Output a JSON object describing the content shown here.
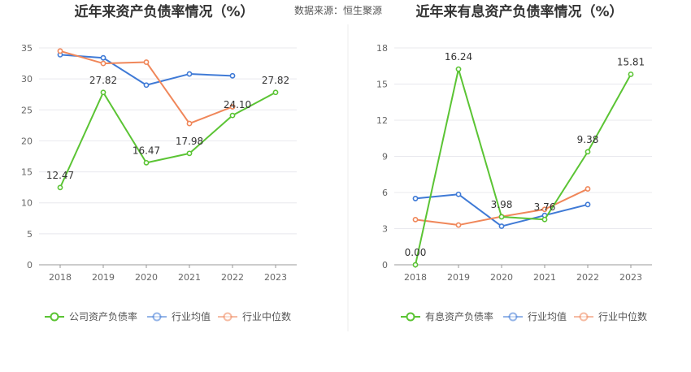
{
  "source": "数据来源：恒生聚源",
  "chart_data": [
    {
      "type": "line",
      "title": "近年来资产负债率情况（%）",
      "categories": [
        "2018",
        "2019",
        "2020",
        "2021",
        "2022",
        "2023"
      ],
      "ylim": [
        0,
        35
      ],
      "yticks": [
        0,
        5,
        10,
        15,
        20,
        25,
        30,
        35
      ],
      "grid": true,
      "legend": "bottom",
      "series": [
        {
          "name": "公司资产负债率",
          "color": "#5bc434",
          "values": [
            12.47,
            27.82,
            16.47,
            17.98,
            24.1,
            27.82
          ],
          "labels": [
            "12.47",
            "27.82",
            "16.47",
            "17.98",
            "24.10",
            "27.82"
          ]
        },
        {
          "name": "行业均值",
          "color": "#3f7ad6",
          "values": [
            33.9,
            33.4,
            29.0,
            30.8,
            30.5,
            null
          ]
        },
        {
          "name": "行业中位数",
          "color": "#f0875a",
          "values": [
            34.5,
            32.5,
            32.7,
            22.8,
            25.5,
            null
          ]
        }
      ]
    },
    {
      "type": "line",
      "title": "近年来有息资产负债率情况（%）",
      "categories": [
        "2018",
        "2019",
        "2020",
        "2021",
        "2022",
        "2023"
      ],
      "ylim": [
        0,
        18
      ],
      "yticks": [
        0,
        3,
        6,
        9,
        12,
        15,
        18
      ],
      "grid": true,
      "legend": "bottom",
      "series": [
        {
          "name": "有息资产负债率",
          "color": "#5bc434",
          "values": [
            0.0,
            16.24,
            3.98,
            3.76,
            9.38,
            15.81
          ],
          "labels": [
            "0.00",
            "16.24",
            "3.98",
            "3.76",
            "9.38",
            "15.81"
          ]
        },
        {
          "name": "行业均值",
          "color": "#3f7ad6",
          "values": [
            5.5,
            5.85,
            3.2,
            4.1,
            5.0,
            null
          ]
        },
        {
          "name": "行业中位数",
          "color": "#f0875a",
          "values": [
            3.75,
            3.3,
            4.0,
            4.6,
            6.3,
            null
          ]
        }
      ]
    }
  ]
}
